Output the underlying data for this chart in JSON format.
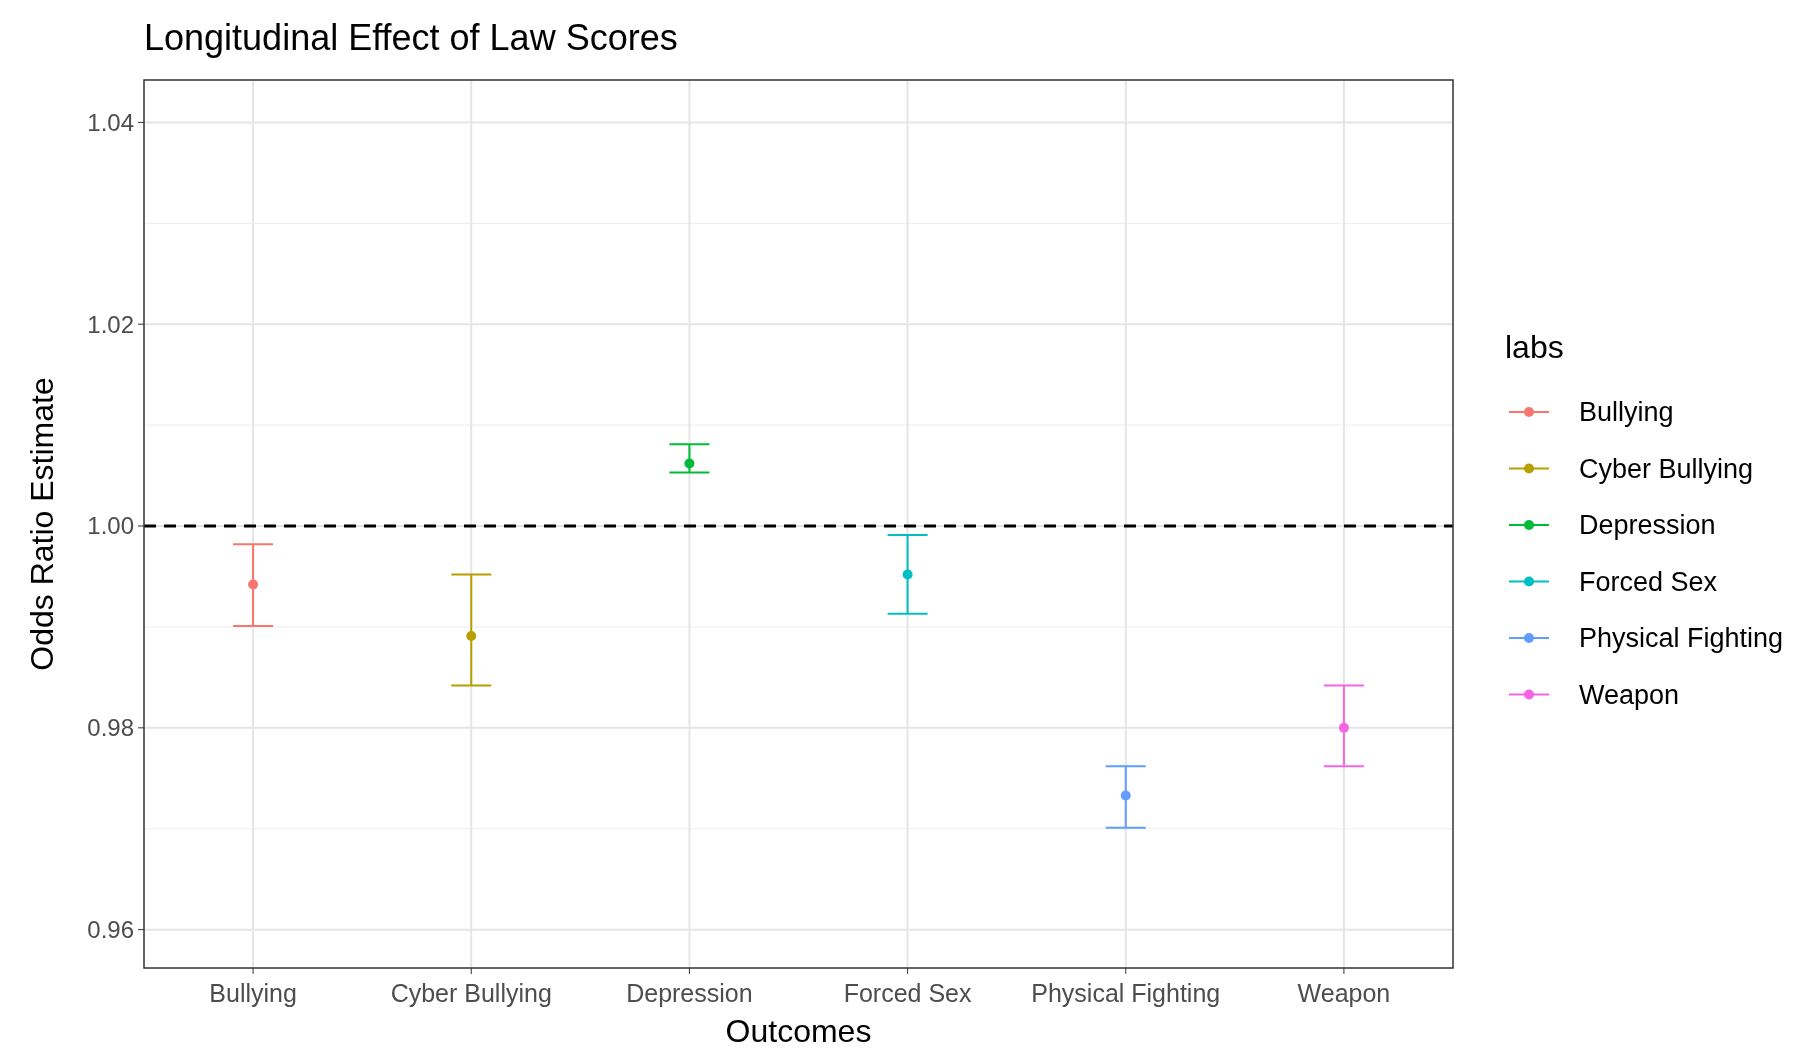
{
  "chart_data": {
    "type": "scatter",
    "title": "Longitudinal Effect of Law Scores",
    "xlabel": "Outcomes",
    "ylabel": "Odds Ratio Estimate",
    "legend_title": "labs",
    "categories": [
      "Bullying",
      "Cyber Bullying",
      "Depression",
      "Forced Sex",
      "Physical Fighting",
      "Weapon"
    ],
    "series": [
      {
        "name": "Bullying",
        "color": "#f8766d",
        "values": [
          0.9942,
          null,
          null,
          null,
          null,
          null
        ],
        "errors": [
          [
            0.9901,
            0.9982
          ],
          null,
          null,
          null,
          null,
          null
        ]
      },
      {
        "name": "Cyber Bullying",
        "color": "#b79f00",
        "values": [
          null,
          0.9891,
          null,
          null,
          null,
          null
        ],
        "errors": [
          null,
          [
            0.9842,
            0.9952
          ],
          null,
          null,
          null,
          null
        ]
      },
      {
        "name": "Depression",
        "color": "#00ba38",
        "values": [
          null,
          null,
          1.0062,
          null,
          null,
          null
        ],
        "errors": [
          null,
          null,
          [
            1.0053,
            1.0081
          ],
          null,
          null,
          null
        ]
      },
      {
        "name": "Forced Sex",
        "color": "#00bfc4",
        "values": [
          null,
          null,
          null,
          0.9952,
          null,
          null
        ],
        "errors": [
          null,
          null,
          null,
          [
            0.9913,
            0.9991
          ],
          null,
          null
        ]
      },
      {
        "name": "Physical Fighting",
        "color": "#619cff",
        "values": [
          null,
          null,
          null,
          null,
          0.9733,
          null
        ],
        "errors": [
          null,
          null,
          null,
          null,
          [
            0.9701,
            0.9762
          ],
          null
        ]
      },
      {
        "name": "Weapon",
        "color": "#f564e3",
        "values": [
          null,
          null,
          null,
          null,
          null,
          0.98
        ],
        "errors": [
          null,
          null,
          null,
          null,
          null,
          [
            0.9762,
            0.9842
          ]
        ]
      }
    ],
    "ylim": [
      0.9562,
      1.0442
    ],
    "yticks": [
      0.96,
      0.98,
      {
        "value": 1,
        "label": "1.00"
      },
      1.02,
      1.04
    ],
    "grid": true,
    "legend": "right",
    "marker": "circle",
    "ref_lines": [
      {
        "axis": "y",
        "value": 1,
        "color": "#000000",
        "line_style": "dashed"
      }
    ]
  }
}
